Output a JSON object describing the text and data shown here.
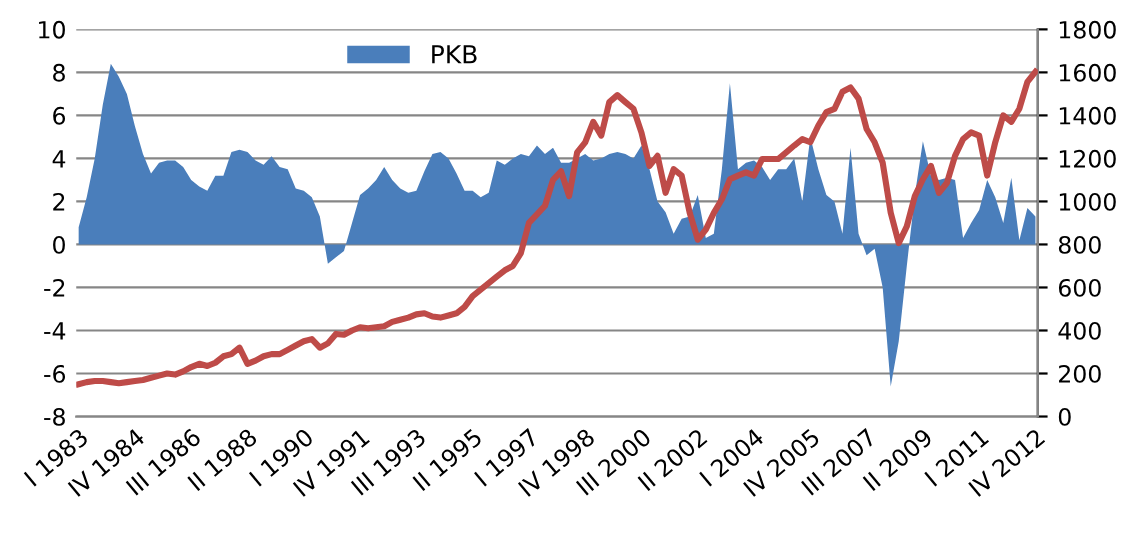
{
  "chart_data": {
    "type": "area",
    "categories": [
      "I 1983",
      null,
      null,
      null,
      null,
      null,
      null,
      "IV 1984",
      null,
      null,
      null,
      null,
      null,
      null,
      "III 1986",
      null,
      null,
      null,
      null,
      null,
      null,
      "II 1988",
      null,
      null,
      null,
      null,
      null,
      null,
      "I 1990",
      null,
      null,
      null,
      null,
      null,
      null,
      "IV 1991",
      null,
      null,
      null,
      null,
      null,
      null,
      "III 1993",
      null,
      null,
      null,
      null,
      null,
      null,
      "II 1995",
      null,
      null,
      null,
      null,
      null,
      null,
      "I 1997",
      null,
      null,
      null,
      null,
      null,
      null,
      "IV 1998",
      null,
      null,
      null,
      null,
      null,
      null,
      "III 2000",
      null,
      null,
      null,
      null,
      null,
      null,
      "II 2002",
      null,
      null,
      null,
      null,
      null,
      null,
      "I 2004",
      null,
      null,
      null,
      null,
      null,
      null,
      "IV 2005",
      null,
      null,
      null,
      null,
      null,
      null,
      "III 2007",
      null,
      null,
      null,
      null,
      null,
      null,
      "II 2009",
      null,
      null,
      null,
      null,
      null,
      null,
      "I 2011",
      null,
      null,
      null,
      null,
      null,
      null,
      "IV 2012"
    ],
    "series": [
      {
        "name": "PKB",
        "axis": "y",
        "color": "#4a7ebb",
        "values": [
          0.8,
          2.2,
          4,
          6.5,
          8.4,
          7.8,
          7,
          5.5,
          4.2,
          3.3,
          3.8,
          3.9,
          3.9,
          3.6,
          3,
          2.7,
          2.5,
          3.2,
          3.2,
          4.3,
          4.4,
          4.3,
          3.9,
          3.7,
          4.1,
          3.6,
          3.5,
          2.6,
          2.5,
          2.2,
          1.3,
          -0.9,
          -0.6,
          -0.3,
          1,
          2.3,
          2.6,
          3,
          3.6,
          3,
          2.6,
          2.4,
          2.5,
          3.4,
          4.2,
          4.3,
          4,
          3.3,
          2.5,
          2.5,
          2.2,
          2.4,
          3.9,
          3.7,
          4,
          4.2,
          4.1,
          4.6,
          4.2,
          4.5,
          3.8,
          3.8,
          4,
          4.2,
          3.9,
          4,
          4.2,
          4.3,
          4.2,
          4,
          4.6,
          3.5,
          2,
          1.5,
          0.5,
          1.2,
          1.3,
          2.3,
          0.3,
          0.5,
          3.5,
          7.5,
          3.5,
          3.8,
          3.9,
          3.6,
          3,
          3.5,
          3.5,
          4,
          2,
          5,
          3.5,
          2.3,
          2,
          0.5,
          4.5,
          0.5,
          -0.5,
          -0.2,
          -2,
          -6.6,
          -4.5,
          -1,
          2.3,
          4.8,
          3.2,
          3,
          3.1,
          3,
          0.3,
          1,
          1.6,
          3,
          2.2,
          1,
          3.1,
          0.2,
          1.7,
          1.3
        ]
      },
      {
        "type": "line",
        "axis": "y2",
        "color": "#be4b48",
        "values": [
          150,
          160,
          165,
          165,
          160,
          155,
          160,
          165,
          170,
          180,
          190,
          200,
          195,
          210,
          230,
          245,
          235,
          250,
          280,
          290,
          320,
          245,
          260,
          280,
          290,
          290,
          310,
          330,
          350,
          360,
          320,
          340,
          384,
          380,
          400,
          415,
          410,
          415,
          420,
          440,
          450,
          460,
          475,
          480,
          465,
          460,
          470,
          480,
          510,
          560,
          590,
          620,
          650,
          680,
          700,
          760,
          900,
          940,
          980,
          1100,
          1140,
          1025,
          1228,
          1275,
          1370,
          1306,
          1462,
          1494,
          1462,
          1431,
          1320,
          1165,
          1212,
          1040,
          1150,
          1120,
          947,
          822,
          869,
          947,
          1010,
          1103,
          1120,
          1135,
          1120,
          1197,
          1197,
          1197,
          1228,
          1260,
          1290,
          1275,
          1353,
          1415,
          1430,
          1510,
          1530,
          1478,
          1337,
          1275,
          1180,
          947,
          806,
          884,
          1025,
          1103,
          1165,
          1040,
          1087,
          1212,
          1290,
          1321,
          1306,
          1120,
          1275,
          1400,
          1370,
          1431,
          1556,
          1603
        ]
      }
    ],
    "ylim": [
      -8,
      10
    ],
    "yticks": [
      -8,
      -6,
      -4,
      -2,
      0,
      2,
      4,
      6,
      8,
      10
    ],
    "y2lim": [
      0,
      1800
    ],
    "y2ticks": [
      0,
      200,
      400,
      600,
      800,
      1000,
      1200,
      1400,
      1600,
      1800
    ],
    "grid": "y",
    "legend": "top",
    "line_style": "solid"
  }
}
